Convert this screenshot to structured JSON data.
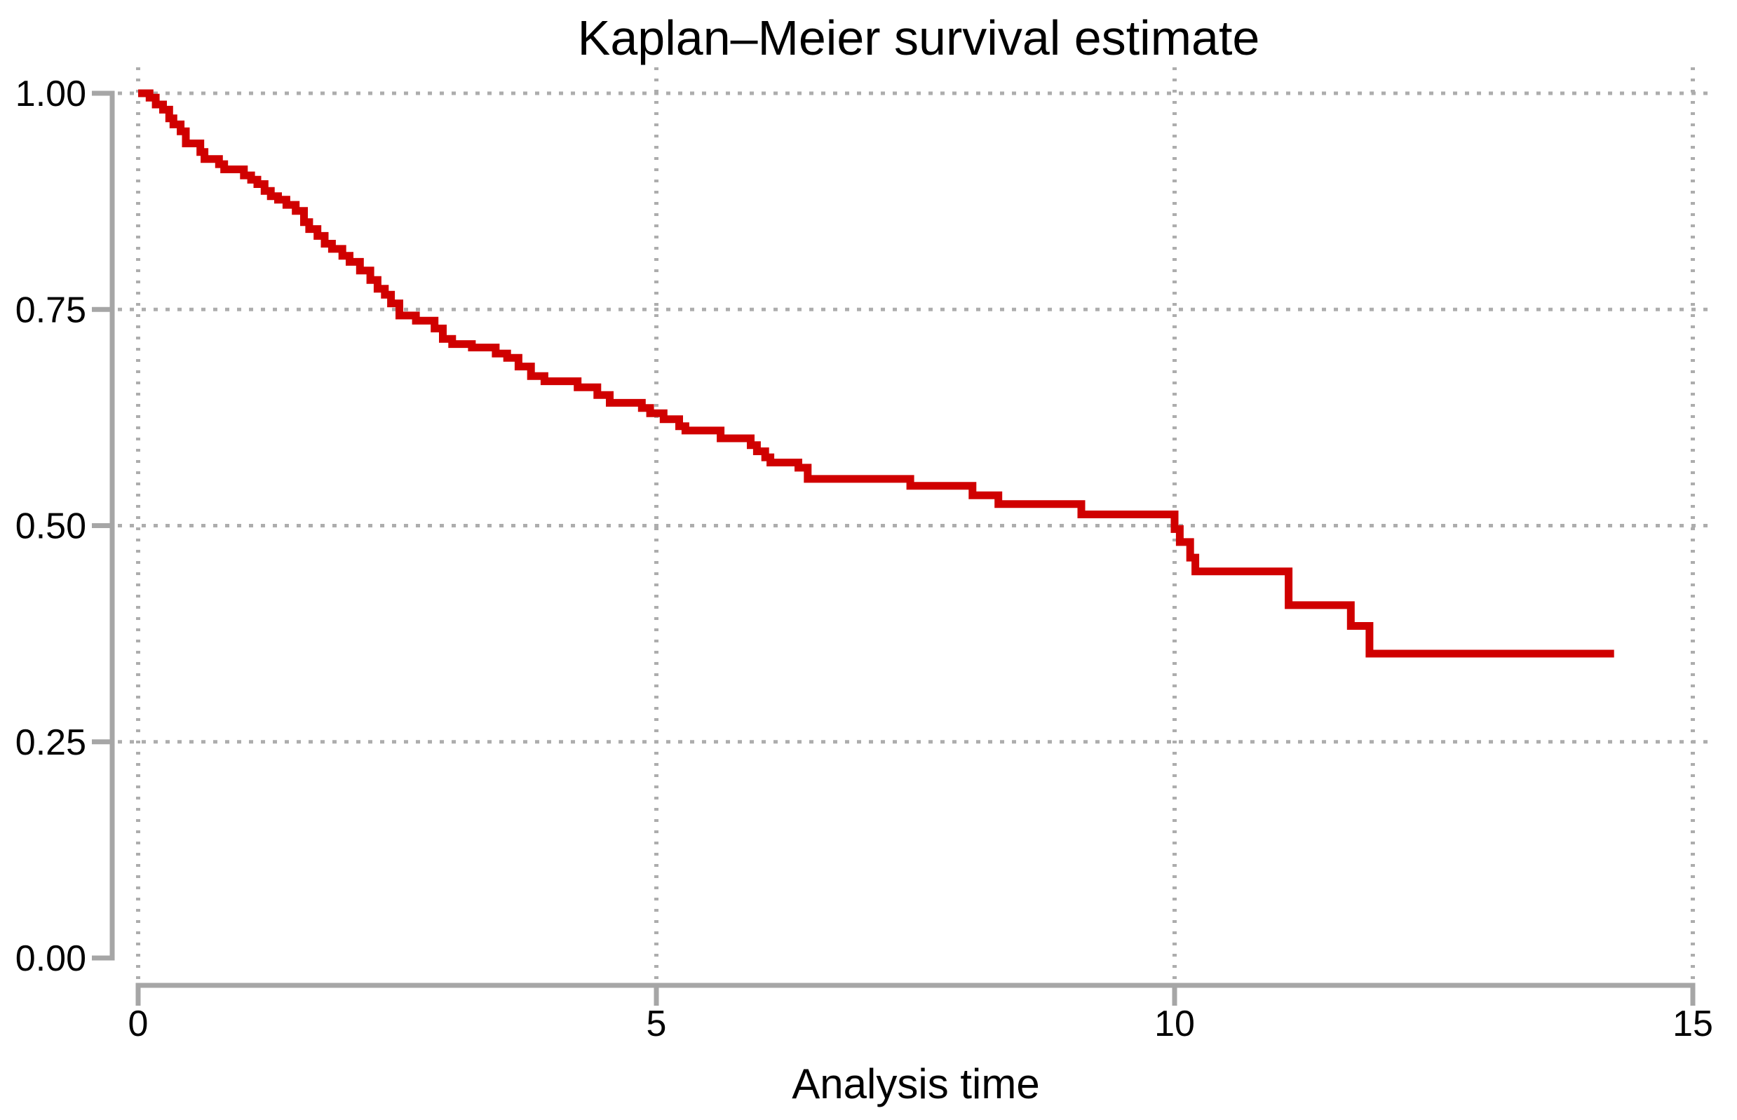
{
  "chart_data": {
    "type": "line",
    "line_style": "step-after",
    "title": "Kaplan–Meier survival estimate",
    "xlabel": "Analysis time",
    "ylabel": "",
    "xlim": [
      0,
      15
    ],
    "ylim": [
      0,
      1
    ],
    "xticks": [
      {
        "value": 0,
        "label": "0"
      },
      {
        "value": 5,
        "label": "5"
      },
      {
        "value": 10,
        "label": "10"
      },
      {
        "value": 15,
        "label": "15"
      }
    ],
    "yticks": [
      {
        "value": 0.0,
        "label": "0.00"
      },
      {
        "value": 0.25,
        "label": "0.25"
      },
      {
        "value": 0.5,
        "label": "0.50"
      },
      {
        "value": 0.75,
        "label": "0.75"
      },
      {
        "value": 1.0,
        "label": "1.00"
      }
    ],
    "grid": {
      "style": "dotted",
      "horizontal_at": [
        0.25,
        0.5,
        0.75,
        1.0
      ],
      "vertical_at": [
        0,
        5,
        10,
        15
      ]
    },
    "legend": "none",
    "series": [
      {
        "name": "Kaplan–Meier survival estimate",
        "color": "#d00000",
        "points": [
          [
            0.0,
            1.0
          ],
          [
            0.11,
            0.995
          ],
          [
            0.17,
            0.987
          ],
          [
            0.24,
            0.981
          ],
          [
            0.3,
            0.971
          ],
          [
            0.34,
            0.964
          ],
          [
            0.41,
            0.956
          ],
          [
            0.46,
            0.942
          ],
          [
            0.6,
            0.932
          ],
          [
            0.64,
            0.924
          ],
          [
            0.78,
            0.918
          ],
          [
            0.83,
            0.912
          ],
          [
            1.02,
            0.905
          ],
          [
            1.09,
            0.9
          ],
          [
            1.15,
            0.895
          ],
          [
            1.22,
            0.887
          ],
          [
            1.28,
            0.881
          ],
          [
            1.35,
            0.877
          ],
          [
            1.43,
            0.871
          ],
          [
            1.52,
            0.864
          ],
          [
            1.6,
            0.851
          ],
          [
            1.65,
            0.843
          ],
          [
            1.73,
            0.835
          ],
          [
            1.8,
            0.826
          ],
          [
            1.87,
            0.82
          ],
          [
            1.97,
            0.812
          ],
          [
            2.04,
            0.805
          ],
          [
            2.14,
            0.795
          ],
          [
            2.24,
            0.784
          ],
          [
            2.31,
            0.774
          ],
          [
            2.38,
            0.767
          ],
          [
            2.44,
            0.757
          ],
          [
            2.52,
            0.743
          ],
          [
            2.68,
            0.737
          ],
          [
            2.86,
            0.728
          ],
          [
            2.94,
            0.716
          ],
          [
            3.03,
            0.71
          ],
          [
            3.22,
            0.706
          ],
          [
            3.45,
            0.699
          ],
          [
            3.56,
            0.694
          ],
          [
            3.67,
            0.684
          ],
          [
            3.79,
            0.673
          ],
          [
            3.92,
            0.667
          ],
          [
            4.24,
            0.66
          ],
          [
            4.43,
            0.651
          ],
          [
            4.55,
            0.642
          ],
          [
            4.86,
            0.636
          ],
          [
            4.94,
            0.63
          ],
          [
            5.07,
            0.623
          ],
          [
            5.22,
            0.615
          ],
          [
            5.28,
            0.61
          ],
          [
            5.62,
            0.601
          ],
          [
            5.91,
            0.593
          ],
          [
            5.97,
            0.586
          ],
          [
            6.05,
            0.579
          ],
          [
            6.1,
            0.573
          ],
          [
            6.37,
            0.567
          ],
          [
            6.46,
            0.554
          ],
          [
            7.45,
            0.546
          ],
          [
            8.05,
            0.535
          ],
          [
            8.3,
            0.525
          ],
          [
            9.1,
            0.513
          ],
          [
            10.0,
            0.496
          ],
          [
            10.05,
            0.481
          ],
          [
            10.15,
            0.463
          ],
          [
            10.2,
            0.447
          ],
          [
            11.1,
            0.408
          ],
          [
            11.7,
            0.384
          ],
          [
            11.88,
            0.352
          ],
          [
            14.24,
            0.352
          ]
        ]
      }
    ]
  },
  "colors": {
    "curve": "#d00000",
    "axis": "#a6a6a6",
    "grid": "#adadad",
    "text": "#000000",
    "background": "#ffffff"
  }
}
